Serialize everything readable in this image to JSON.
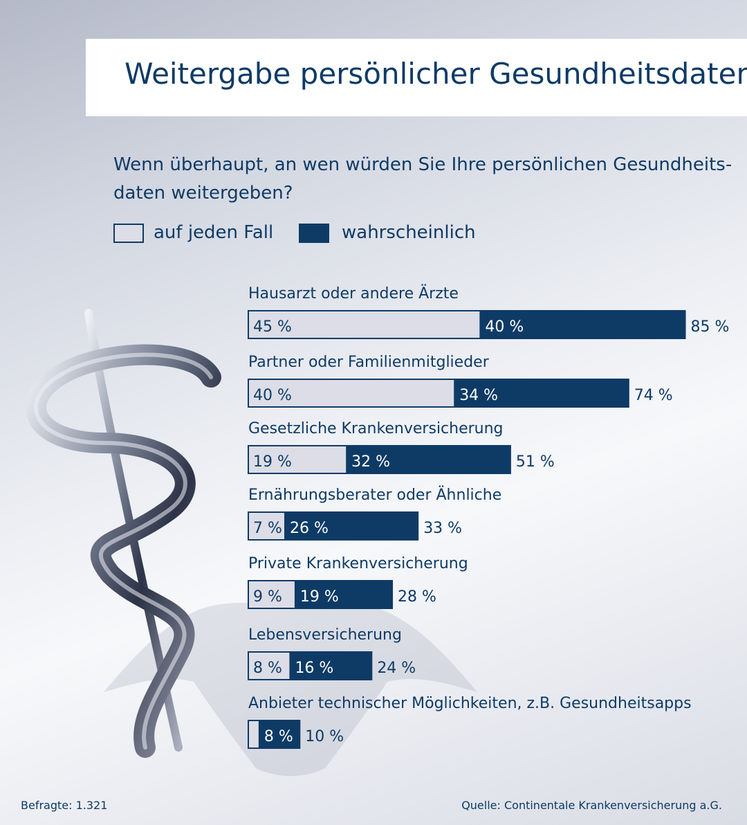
{
  "header": {
    "title": "Weitergabe persönlicher Gesundheitsdaten"
  },
  "question": {
    "line1": "Wenn überhaupt, an wen würden Sie Ihre persönlichen Gesundheits-",
    "line2": "daten weitergeben?"
  },
  "legend": [
    {
      "label": "auf jeden Fall",
      "color": "#dcdde6"
    },
    {
      "label": "wahrscheinlich",
      "color": "#0e3b66"
    }
  ],
  "chart_data": {
    "type": "bar",
    "orientation": "horizontal",
    "stacked": true,
    "title": "Weitergabe persönlicher Gesundheitsdaten",
    "categories": [
      "Hausarzt oder andere Ärzte",
      "Partner oder Familienmitglieder",
      "Gesetzliche Krankenversicherung",
      "Ernährungsberater oder Ähnliche",
      "Private Krankenversicherung",
      "Lebensversicherung",
      "Anbieter technischer Möglichkeiten, z.B. Gesundheitsapps"
    ],
    "series": [
      {
        "name": "auf jeden Fall",
        "values": [
          45,
          40,
          19,
          7,
          9,
          8,
          2
        ],
        "labels": [
          "45 %",
          "40 %",
          "19 %",
          "7 %",
          "9 %",
          "8 %",
          ""
        ]
      },
      {
        "name": "wahrscheinlich",
        "values": [
          40,
          34,
          32,
          26,
          19,
          16,
          8
        ],
        "labels": [
          "40 %",
          "34 %",
          "32 %",
          "26 %",
          "19 %",
          "16 %",
          "8 %"
        ]
      }
    ],
    "totals": [
      "85 %",
      "74 %",
      "51 %",
      "33 %",
      "28 %",
      "24 %",
      "10 %"
    ],
    "unit": "%",
    "colors": {
      "first": "#dcdde6",
      "second": "#0e3b66",
      "border": "#0e3b66",
      "text": "#0e3b66"
    }
  },
  "footer": {
    "respondents": "Befragte: 1.321",
    "source": "Quelle: Continentale Krankenversicherung a.G."
  }
}
